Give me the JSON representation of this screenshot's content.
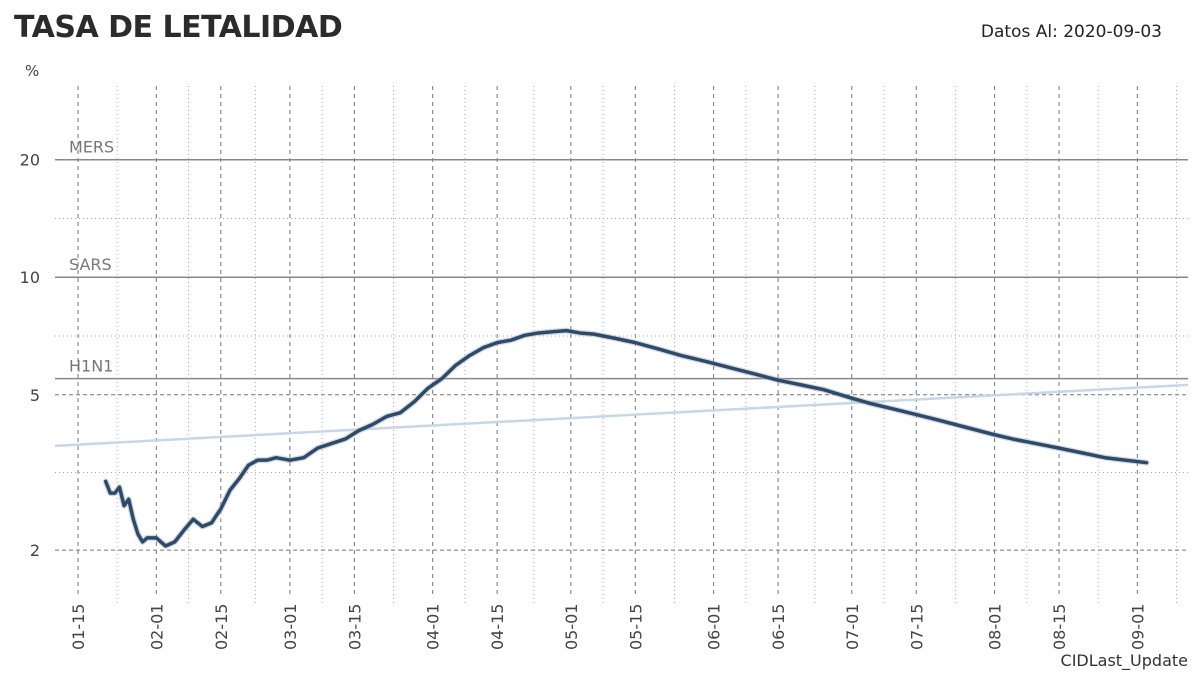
{
  "header": {
    "title": "TASA DE LETALIDAD",
    "data_date": "Datos Al: 2020-09-03"
  },
  "footer": {
    "label": "CIDLast_Update"
  },
  "chart_data": {
    "type": "line",
    "title": "TASA DE LETALIDAD",
    "ylabel": "%",
    "yscale": "log",
    "ylim": [
      1.6,
      32
    ],
    "yticks": [
      2,
      5,
      10,
      20
    ],
    "ytick_labels": [
      "2",
      "5",
      "10",
      "20"
    ],
    "xlim": [
      "2020-01-10",
      "2020-09-12"
    ],
    "xticks": [
      "2020-01-15",
      "2020-02-01",
      "2020-02-15",
      "2020-03-01",
      "2020-03-15",
      "2020-04-01",
      "2020-04-15",
      "2020-05-01",
      "2020-05-15",
      "2020-06-01",
      "2020-06-15",
      "2020-07-01",
      "2020-07-15",
      "2020-08-01",
      "2020-08-15",
      "2020-09-01"
    ],
    "xtick_labels": [
      "01-15",
      "02-01",
      "02-15",
      "03-01",
      "03-15",
      "04-01",
      "04-15",
      "05-01",
      "05-15",
      "06-01",
      "06-15",
      "07-01",
      "07-15",
      "08-01",
      "08-15",
      "09-01"
    ],
    "grid": true,
    "reference_lines": [
      {
        "name": "MERS",
        "value": 20
      },
      {
        "name": "SARS",
        "value": 10
      },
      {
        "name": "H1N1",
        "value": 5.5
      }
    ],
    "colors": {
      "main": "#2e4a6b",
      "trend": "#c8d6e6",
      "reference": "#888888"
    },
    "series": [
      {
        "x": [
          "2020-01-21",
          "2020-01-22",
          "2020-01-23",
          "2020-01-24",
          "2020-01-25",
          "2020-01-26",
          "2020-01-27",
          "2020-01-28",
          "2020-01-29",
          "2020-01-30",
          "2020-02-01",
          "2020-02-03",
          "2020-02-05",
          "2020-02-07",
          "2020-02-09",
          "2020-02-11",
          "2020-02-13",
          "2020-02-14",
          "2020-02-15",
          "2020-02-17",
          "2020-02-19",
          "2020-02-21",
          "2020-02-23",
          "2020-02-25",
          "2020-02-27",
          "2020-03-01",
          "2020-03-04",
          "2020-03-07",
          "2020-03-10",
          "2020-03-13",
          "2020-03-16",
          "2020-03-19",
          "2020-03-22",
          "2020-03-25",
          "2020-03-28",
          "2020-03-31",
          "2020-04-03",
          "2020-04-06",
          "2020-04-09",
          "2020-04-12",
          "2020-04-15",
          "2020-04-18",
          "2020-04-21",
          "2020-04-24",
          "2020-04-27",
          "2020-04-30",
          "2020-05-03",
          "2020-05-06",
          "2020-05-10",
          "2020-05-15",
          "2020-05-20",
          "2020-05-25",
          "2020-05-30",
          "2020-06-05",
          "2020-06-10",
          "2020-06-15",
          "2020-06-20",
          "2020-06-25",
          "2020-07-01",
          "2020-07-05",
          "2020-07-10",
          "2020-07-15",
          "2020-07-20",
          "2020-07-25",
          "2020-08-01",
          "2020-08-05",
          "2020-08-10",
          "2020-08-15",
          "2020-08-20",
          "2020-08-25",
          "2020-09-03"
        ],
        "values": [
          3.0,
          2.8,
          2.8,
          2.9,
          2.6,
          2.7,
          2.4,
          2.2,
          2.1,
          2.15,
          2.15,
          2.05,
          2.1,
          2.25,
          2.4,
          2.3,
          2.35,
          2.45,
          2.55,
          2.85,
          3.05,
          3.3,
          3.4,
          3.4,
          3.45,
          3.4,
          3.45,
          3.65,
          3.75,
          3.85,
          4.05,
          4.2,
          4.4,
          4.5,
          4.8,
          5.2,
          5.5,
          5.95,
          6.3,
          6.6,
          6.8,
          6.9,
          7.1,
          7.2,
          7.25,
          7.3,
          7.2,
          7.15,
          7.0,
          6.8,
          6.55,
          6.3,
          6.1,
          5.85,
          5.65,
          5.45,
          5.3,
          5.15,
          4.9,
          4.75,
          4.6,
          4.45,
          4.3,
          4.15,
          3.95,
          3.85,
          3.75,
          3.65,
          3.55,
          3.45,
          3.35
        ]
      },
      {
        "x": [
          "2020-01-10",
          "2020-09-12"
        ],
        "values": [
          3.7,
          5.3
        ]
      }
    ]
  }
}
